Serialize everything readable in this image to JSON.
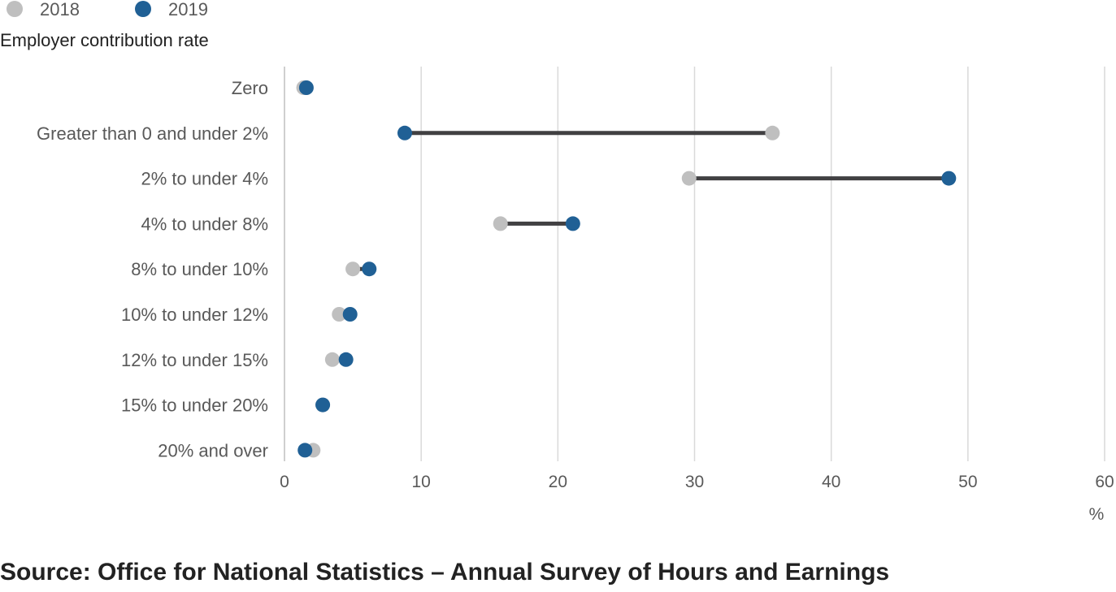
{
  "chart_data": {
    "type": "dumbbell",
    "title": "",
    "category_axis_title": "Employer contribution rate",
    "value_axis_unit": "%",
    "xlim": [
      0,
      60
    ],
    "xticks": [
      "0",
      "10",
      "20",
      "30",
      "40",
      "50",
      "60"
    ],
    "categories": [
      "Zero",
      "Greater than 0 and under 2%",
      "2% to under 4%",
      "4% to under 8%",
      "8% to under 10%",
      "10% to under 12%",
      "12% to under 15%",
      "15% to under 20%",
      "20% and over"
    ],
    "series": [
      {
        "name": "2018",
        "color": "#bfbfbf",
        "values": [
          1.4,
          35.7,
          29.6,
          15.8,
          5.0,
          4.0,
          3.5,
          2.8,
          2.1
        ]
      },
      {
        "name": "2019",
        "color": "#206095",
        "values": [
          1.6,
          8.8,
          48.6,
          21.1,
          6.2,
          4.8,
          4.5,
          2.8,
          1.5
        ]
      }
    ],
    "connector_color": "#414042",
    "legend_position": "top-left"
  },
  "source": "Source: Office for National Statistics – Annual Survey of Hours and Earnings"
}
